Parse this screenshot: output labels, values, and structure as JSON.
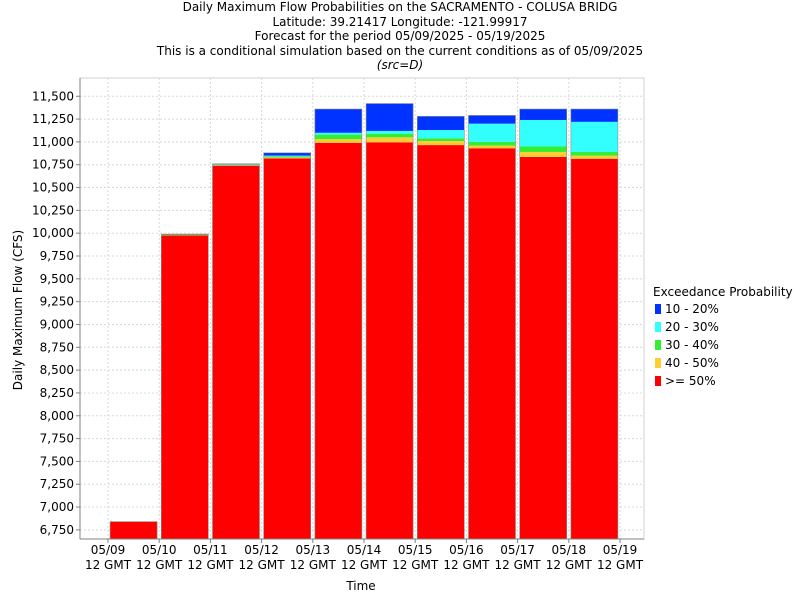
{
  "chart_data": {
    "type": "bar",
    "stacked": true,
    "title_lines": [
      "Daily Maximum Flow Probabilities on the SACRAMENTO - COLUSA BRIDG",
      "Latitude: 39.21417 Longitude: -121.99917",
      "Forecast for the period 05/09/2025 - 05/19/2025",
      "This is a conditional simulation based on the current conditions as of 05/09/2025"
    ],
    "subtitle": "(src=D)",
    "xlabel": "Time",
    "ylabel": "Daily Maximum Flow (CFS)",
    "ylim": [
      6650,
      11700
    ],
    "yticks": [
      6750,
      7000,
      7250,
      7500,
      7750,
      8000,
      8250,
      8500,
      8750,
      9000,
      9250,
      9500,
      9750,
      10000,
      10250,
      10500,
      10750,
      11000,
      11250,
      11500
    ],
    "ytick_labels": [
      "6,750",
      "7,000",
      "7,250",
      "7,500",
      "7,750",
      "8,000",
      "8,250",
      "8,500",
      "8,750",
      "9,000",
      "9,250",
      "9,500",
      "9,750",
      "10,000",
      "10,250",
      "10,500",
      "10,750",
      "11,000",
      "11,250",
      "11,500"
    ],
    "xticks": [
      {
        "line1": "05/09",
        "line2": "12 GMT"
      },
      {
        "line1": "05/10",
        "line2": "12 GMT"
      },
      {
        "line1": "05/11",
        "line2": "12 GMT"
      },
      {
        "line1": "05/12",
        "line2": "12 GMT"
      },
      {
        "line1": "05/13",
        "line2": "12 GMT"
      },
      {
        "line1": "05/14",
        "line2": "12 GMT"
      },
      {
        "line1": "05/15",
        "line2": "12 GMT"
      },
      {
        "line1": "05/16",
        "line2": "12 GMT"
      },
      {
        "line1": "05/17",
        "line2": "12 GMT"
      },
      {
        "line1": "05/18",
        "line2": "12 GMT"
      },
      {
        "line1": "05/19",
        "line2": "12 GMT"
      }
    ],
    "grid": true,
    "legend_title": "Exceedance Probability",
    "legend_position": "right",
    "series": [
      {
        "name": "10 - 20%",
        "color": "#0033ff"
      },
      {
        "name": "20 - 30%",
        "color": "#33ffff"
      },
      {
        "name": "30 - 40%",
        "color": "#33ee33"
      },
      {
        "name": "40 - 50%",
        "color": "#ffcc33"
      },
      {
        "name": ">= 50%",
        "color": "#ff0000"
      }
    ],
    "bars": [
      {
        "p50": 6840,
        "p40": 6840,
        "p30": 6840,
        "p20": 6840,
        "p10": 6840
      },
      {
        "p50": 9975,
        "p40": 9980,
        "p30": 9985,
        "p20": 9985,
        "p10": 9990
      },
      {
        "p50": 10740,
        "p40": 10745,
        "p30": 10750,
        "p20": 10755,
        "p10": 10760
      },
      {
        "p50": 10820,
        "p40": 10830,
        "p30": 10840,
        "p20": 10850,
        "p10": 10880
      },
      {
        "p50": 10990,
        "p40": 11030,
        "p30": 11080,
        "p20": 11100,
        "p10": 11360
      },
      {
        "p50": 10995,
        "p40": 11050,
        "p30": 11090,
        "p20": 11120,
        "p10": 11420
      },
      {
        "p50": 10965,
        "p40": 11010,
        "p30": 11040,
        "p20": 11130,
        "p10": 11280
      },
      {
        "p50": 10930,
        "p40": 10960,
        "p30": 11000,
        "p20": 11200,
        "p10": 11290
      },
      {
        "p50": 10835,
        "p40": 10890,
        "p30": 10950,
        "p20": 11240,
        "p10": 11360
      },
      {
        "p50": 10815,
        "p40": 10850,
        "p30": 10890,
        "p20": 11220,
        "p10": 11360
      }
    ]
  }
}
